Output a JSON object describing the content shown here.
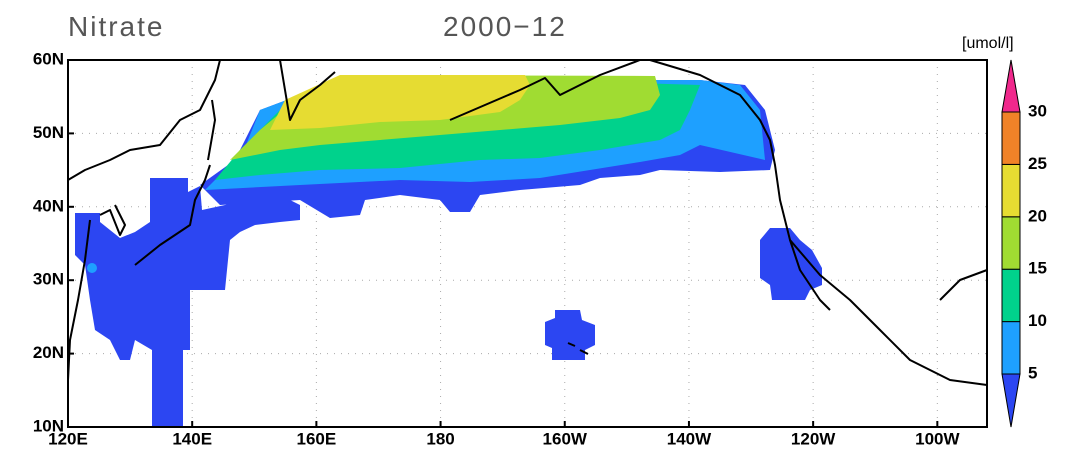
{
  "title": "Nitrate",
  "date": "2000−12",
  "unit": "[umol/l]",
  "map": {
    "lon_range": [
      120,
      268
    ],
    "lat_range": [
      10,
      60
    ],
    "lon_ticks": [
      {
        "value": 120,
        "label": "120E"
      },
      {
        "value": 140,
        "label": "140E"
      },
      {
        "value": 160,
        "label": "160E"
      },
      180,
      {
        "value": 200,
        "label": "160W"
      },
      {
        "value": 220,
        "label": "140W"
      },
      {
        "value": 240,
        "label": "120W"
      },
      {
        "value": 260,
        "label": "100W"
      }
    ],
    "lat_ticks": [
      {
        "value": 10,
        "label": "10N"
      },
      {
        "value": 20,
        "label": "20N"
      },
      {
        "value": 30,
        "label": "30N"
      },
      {
        "value": 40,
        "label": "40N"
      },
      {
        "value": 50,
        "label": "50N"
      },
      {
        "value": 60,
        "label": "60N"
      }
    ]
  },
  "colorbar": {
    "levels": [
      5,
      10,
      15,
      20,
      25,
      30
    ],
    "colors": [
      "#2c46f2",
      "#1ea0ff",
      "#00d28c",
      "#a0dc32",
      "#e6dc32",
      "#f08228",
      "#f0288c"
    ]
  }
}
